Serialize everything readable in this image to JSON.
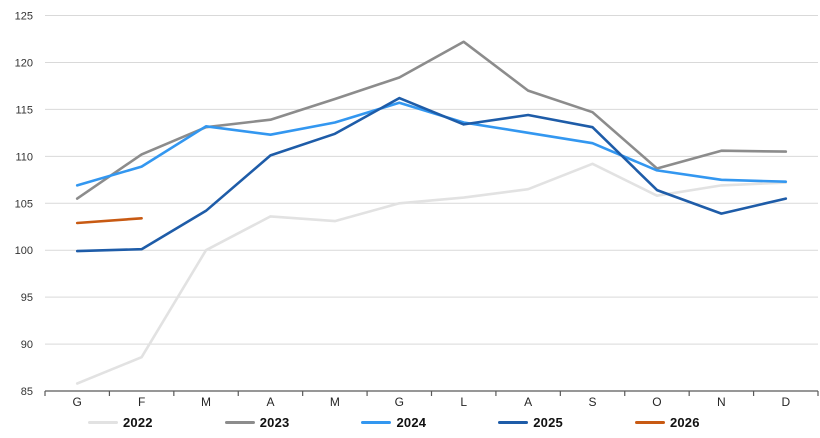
{
  "chart_data": {
    "type": "line",
    "categories": [
      "G",
      "F",
      "M",
      "A",
      "M",
      "G",
      "L",
      "A",
      "S",
      "O",
      "N",
      "D"
    ],
    "series": [
      {
        "name": "2022",
        "color": "#E2E2E2",
        "values": [
          85.8,
          88.6,
          100.0,
          103.6,
          103.1,
          105.0,
          105.6,
          106.5,
          109.2,
          105.8,
          106.9,
          107.2
        ]
      },
      {
        "name": "2023",
        "color": "#8C8C8C",
        "values": [
          105.5,
          110.2,
          113.1,
          113.9,
          116.1,
          118.4,
          122.2,
          117.0,
          114.7,
          108.7,
          110.6,
          110.5
        ]
      },
      {
        "name": "2024",
        "color": "#3397F0",
        "values": [
          106.9,
          108.9,
          113.2,
          112.3,
          113.6,
          115.7,
          113.6,
          112.5,
          111.4,
          108.5,
          107.5,
          107.3
        ]
      },
      {
        "name": "2025",
        "color": "#1E5CA8",
        "values": [
          99.9,
          100.1,
          104.2,
          110.1,
          112.4,
          116.2,
          113.4,
          114.4,
          113.1,
          106.4,
          103.9,
          105.5
        ]
      },
      {
        "name": "2026",
        "color": "#C85A13",
        "values": [
          102.9,
          103.4,
          null,
          null,
          null,
          null,
          null,
          null,
          null,
          null,
          null,
          null
        ]
      }
    ],
    "title": "",
    "xlabel": "",
    "ylabel": "",
    "ylim": [
      85,
      125
    ],
    "ytick_step": 5,
    "y_tick_labels": [
      "85",
      "90",
      "95",
      "100",
      "105",
      "110",
      "115",
      "120",
      "125"
    ],
    "grid": true,
    "legend_position": "bottom",
    "legend_labels": [
      "2022",
      "2023",
      "2024",
      "2025",
      "2026"
    ]
  },
  "style": {
    "gridline_color": "#D9D9D9",
    "axis_color": "#595959",
    "tick_label_color": "#333333",
    "background_color": "#FFFFFF",
    "line_width": 2.6
  }
}
